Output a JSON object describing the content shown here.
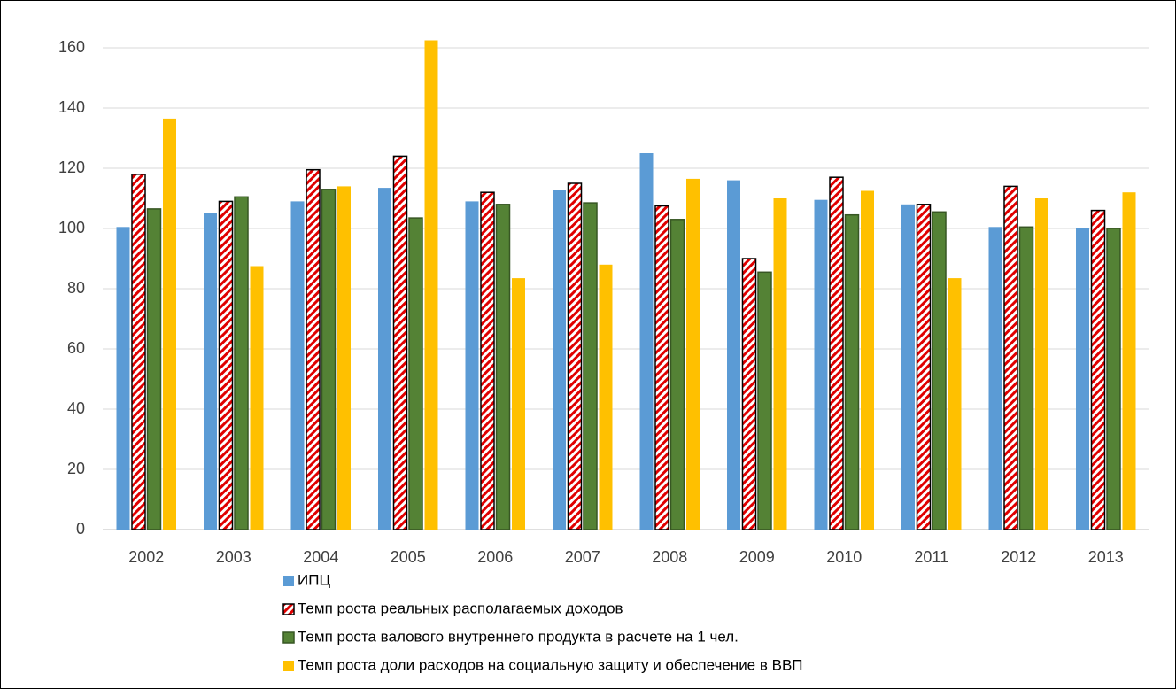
{
  "chart_data": {
    "type": "bar",
    "categories": [
      "2002",
      "2003",
      "2004",
      "2005",
      "2006",
      "2007",
      "2008",
      "2009",
      "2010",
      "2011",
      "2012",
      "2013"
    ],
    "series": [
      {
        "name": "ИПЦ",
        "color": "#5b9bd5",
        "values": [
          100.5,
          105,
          109,
          113.5,
          109,
          112.8,
          125,
          116,
          109.5,
          108,
          100.5,
          100
        ]
      },
      {
        "name": "Темп роста реальных располагаемых доходов",
        "color": "#e00000",
        "edgecolor": "#000000",
        "pattern": "stripes",
        "values": [
          118,
          109,
          119.5,
          124,
          112,
          115,
          107.5,
          90,
          117,
          108,
          114,
          106
        ]
      },
      {
        "name": "Темп роста валового внутреннего продукта в расчете на 1 чел.",
        "color": "#548235",
        "edgecolor": "#375623",
        "values": [
          106.5,
          110.5,
          113,
          103.5,
          108,
          108.5,
          103,
          85.5,
          104.5,
          105.5,
          100.5,
          100
        ]
      },
      {
        "name": "Темп роста доли расходов на социальную защиту и обеспечение в ВВП",
        "color": "#ffc000",
        "values": [
          136.5,
          87.5,
          114,
          162.5,
          83.5,
          88,
          116.5,
          110,
          112.5,
          83.5,
          110,
          112
        ]
      }
    ],
    "ylim": [
      0,
      166
    ],
    "yticks": [
      0,
      20,
      40,
      60,
      80,
      100,
      120,
      140,
      160
    ],
    "grid": true,
    "legend": "bottom"
  }
}
